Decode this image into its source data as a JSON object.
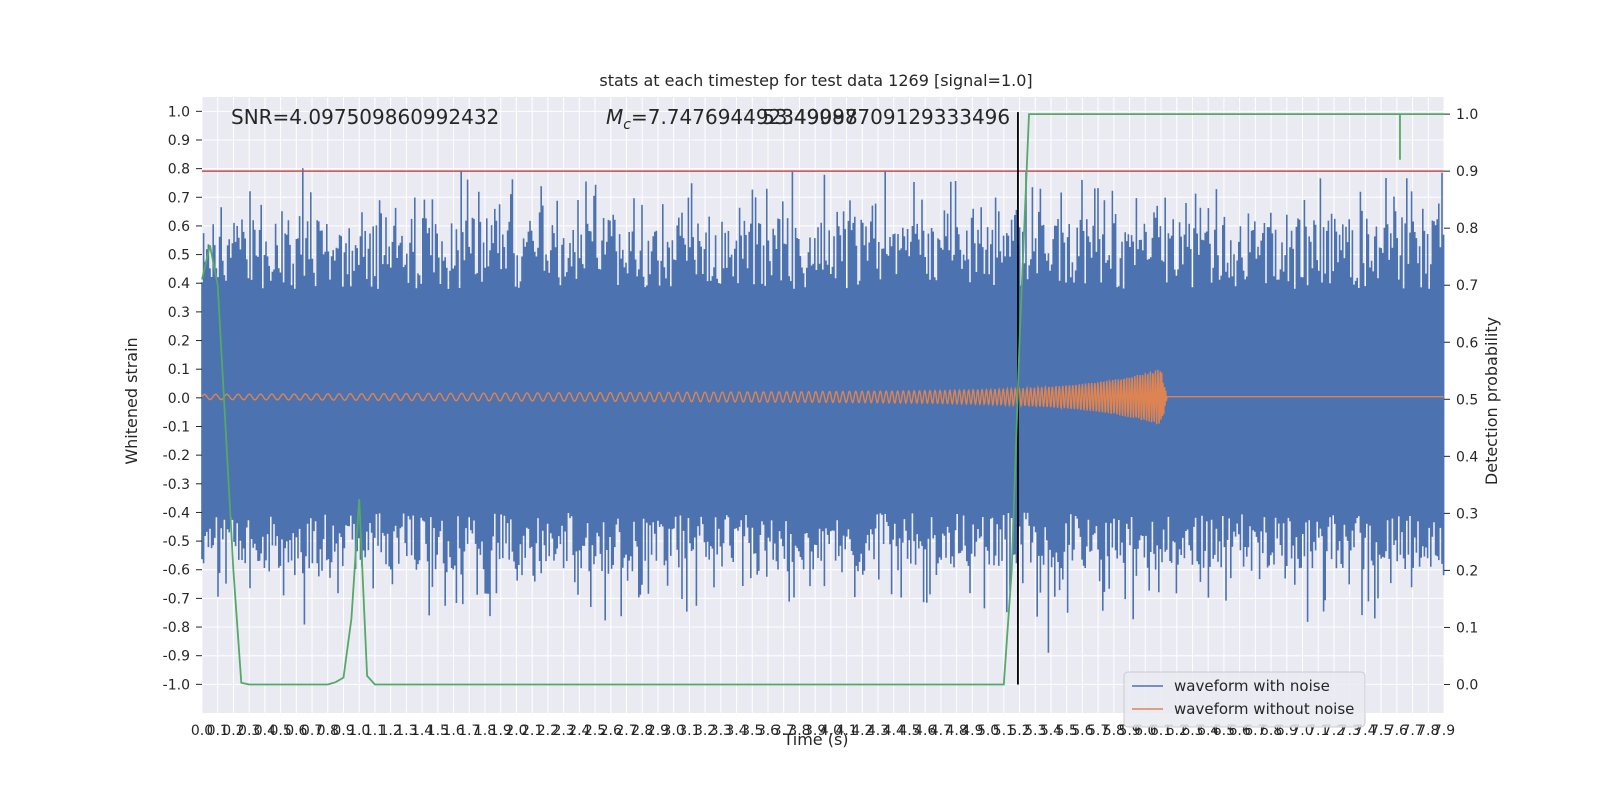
{
  "chart_data": {
    "type": "line",
    "title": "stats at each timestep for test data 1269 [signal=1.0]",
    "xlabel": "Time (s)",
    "ylabel_left": "Whitened strain",
    "ylabel_right": "Detection probability",
    "xlim": [
      0.0,
      7.9
    ],
    "ylim_left": [
      -1.1,
      1.05
    ],
    "ylim_right": [
      -0.05,
      1.03
    ],
    "x_ticks": [
      "0.0",
      "0.1",
      "0.2",
      "0.3",
      "0.4",
      "0.5",
      "0.6",
      "0.7",
      "0.8",
      "0.9",
      "1.0",
      "1.1",
      "1.2",
      "1.3",
      "1.4",
      "1.5",
      "1.6",
      "1.7",
      "1.8",
      "1.9",
      "2.0",
      "2.1",
      "2.2",
      "2.3",
      "2.4",
      "2.5",
      "2.6",
      "2.7",
      "2.8",
      "2.9",
      "3.0",
      "3.1",
      "3.2",
      "3.3",
      "3.4",
      "3.5",
      "3.6",
      "3.7",
      "3.8",
      "3.9",
      "4.0",
      "4.1",
      "4.2",
      "4.3",
      "4.4",
      "4.5",
      "4.6",
      "4.7",
      "4.8",
      "4.9",
      "5.0",
      "5.1",
      "5.2",
      "5.3",
      "5.4",
      "5.5",
      "5.6",
      "5.7",
      "5.8",
      "5.9",
      "6.0",
      "6.1",
      "6.2",
      "6.3",
      "6.4",
      "6.5",
      "6.6",
      "6.7",
      "6.8",
      "6.9",
      "7.0",
      "7.1",
      "7.2",
      "7.3",
      "7.4",
      "7.5",
      "7.6",
      "7.7",
      "7.8",
      "7.9"
    ],
    "y_ticks_left": [
      "1.0",
      "0.9",
      "0.8",
      "0.7",
      "0.6",
      "0.5",
      "0.4",
      "0.3",
      "0.2",
      "0.1",
      "0.0",
      "-0.1",
      "-0.2",
      "-0.3",
      "-0.4",
      "-0.5",
      "-0.6",
      "-0.7",
      "-0.8",
      "-0.9",
      "-1.0"
    ],
    "y_ticks_right": [
      "1.0",
      "0.9",
      "0.8",
      "0.7",
      "0.6",
      "0.5",
      "0.4",
      "0.3",
      "0.2",
      "0.1",
      "0.0"
    ],
    "annotations": {
      "snr": "SNR=4.097509860992432",
      "mc_prefix": "M",
      "mc_sub": "c",
      "mc_value": "=7.747694492349098",
      "overlap_value": "53.49987709129333496"
    },
    "threshold_line": {
      "axis": "right",
      "value": 0.9,
      "color": "#c44e52"
    },
    "event_marker": {
      "x": 5.19,
      "color": "#000000"
    },
    "series": [
      {
        "name": "waveform with noise",
        "axis": "left",
        "color": "#4c72b0",
        "render": "dense noise trace, amplitude roughly ±0.4 to ±0.9"
      },
      {
        "name": "waveform without noise",
        "axis": "left",
        "color": "#dd8452",
        "render": "chirp: amplitude ~0.01 rising to ~0.1 at merger (~6.1 s) then ~0.005 ringdown",
        "merger_time": 6.1,
        "peak_amplitude": 0.1
      },
      {
        "axis": "right",
        "color": "#55a868",
        "x": [
          0.0,
          0.05,
          0.1,
          0.15,
          0.2,
          0.25,
          0.3,
          0.35,
          0.4,
          0.5,
          0.6,
          0.7,
          0.8,
          0.85,
          0.9,
          0.95,
          1.0,
          1.05,
          1.1,
          1.2,
          1.5,
          2.0,
          3.0,
          4.0,
          5.0,
          5.1,
          5.15,
          5.2,
          5.26,
          6.0,
          7.0,
          7.9
        ],
        "y": [
          0.71,
          0.77,
          0.7,
          0.45,
          0.2,
          0.003,
          0.0,
          0.0,
          0.0,
          0.0,
          0.0,
          0.0,
          0.0,
          0.004,
          0.012,
          0.115,
          0.325,
          0.015,
          0.0,
          0.0,
          0.0,
          0.0,
          0.0,
          0.0,
          0.0,
          0.0,
          0.2,
          0.6,
          1.0,
          1.0,
          1.0,
          1.0
        ]
      }
    ],
    "legend": {
      "placement": "lower right"
    },
    "grid": true
  }
}
